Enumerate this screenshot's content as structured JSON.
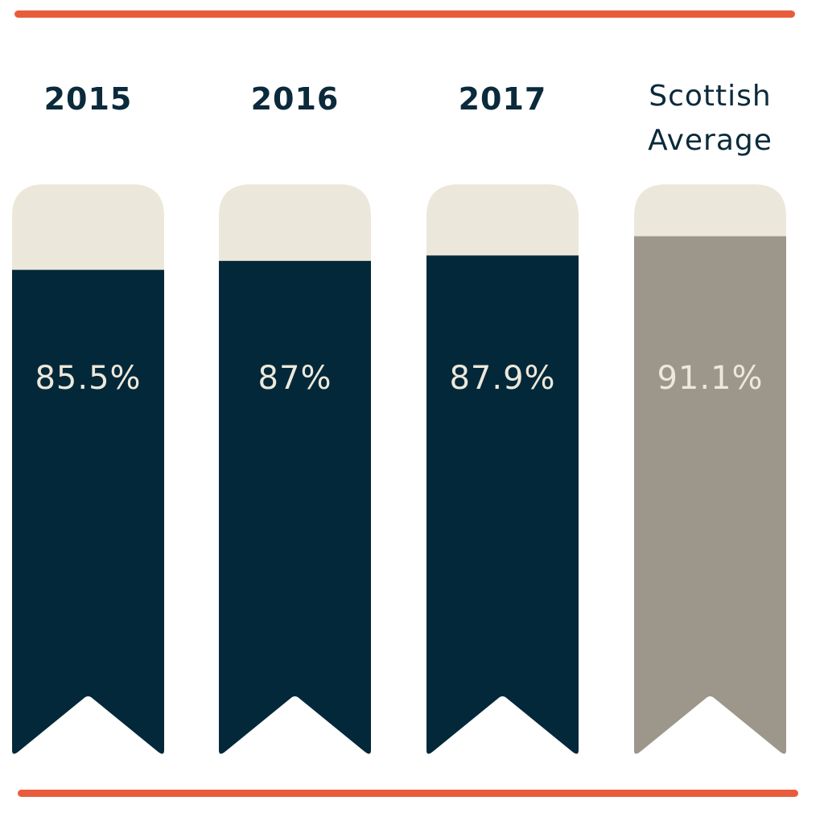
{
  "chart_data": {
    "type": "bar",
    "categories": [
      "2015",
      "2016",
      "2017",
      "Scottish Average"
    ],
    "category_label_lines": [
      [
        "2015"
      ],
      [
        "2016"
      ],
      [
        "2017"
      ],
      [
        "Scottish",
        "Average"
      ]
    ],
    "values": [
      85.5,
      87,
      87.9,
      91.1
    ],
    "value_labels": [
      "85.5%",
      "87%",
      "87.9%",
      "91.1%"
    ],
    "unit": "%",
    "highlighted_category": "Scottish Average",
    "grid": false,
    "legend": "none"
  },
  "colors": {
    "accent_rule": "#e85c3c",
    "bar_primary": "#03283a",
    "bar_highlight": "#9c968b",
    "bar_track": "#ebe7da",
    "label_text": "#0b2a3b",
    "value_text": "#ede8da"
  }
}
